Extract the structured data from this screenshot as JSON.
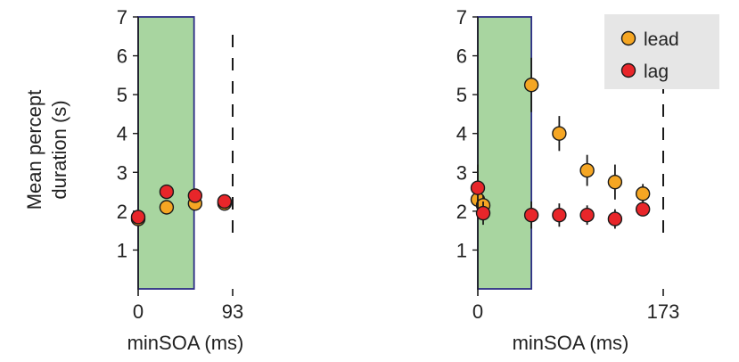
{
  "ylabel": [
    "Mean percept",
    "duration (s)"
  ],
  "legend": {
    "placement": "top-right",
    "items": [
      {
        "label": "lead",
        "color": "#f5a623"
      },
      {
        "label": "lag",
        "color": "#e8262a"
      }
    ]
  },
  "colors": {
    "lead": "#f5a623",
    "lag": "#e8262a",
    "shade_fill": "#a8d5a0",
    "shade_border": "#2d2f86",
    "legend_bg": "#e6e6e6",
    "axis": "#1a1a1a"
  },
  "chart_data": [
    {
      "type": "scatter",
      "xlabel": "minSOA (ms)",
      "ylim": [
        0,
        7
      ],
      "xlim": [
        0,
        93
      ],
      "yticks": [
        "1",
        "2",
        "3",
        "4",
        "5",
        "6",
        "7"
      ],
      "xticks": [
        "0",
        "93"
      ],
      "shaded_x": [
        0,
        55
      ],
      "dashed_x": 93,
      "grid": false,
      "series": [
        {
          "name": "lead",
          "x": [
            0,
            28,
            56,
            85
          ],
          "y": [
            1.8,
            2.1,
            2.2,
            2.2
          ],
          "err": [
            0.05,
            0.05,
            0.05,
            0.05
          ]
        },
        {
          "name": "lag",
          "x": [
            0,
            28,
            56,
            85
          ],
          "y": [
            1.85,
            2.5,
            2.4,
            2.25
          ],
          "err": [
            0.05,
            0.05,
            0.05,
            0.05
          ]
        }
      ]
    },
    {
      "type": "scatter",
      "xlabel": "minSOA (ms)",
      "ylim": [
        0,
        7
      ],
      "xlim": [
        0,
        173
      ],
      "yticks": [
        "1",
        "2",
        "3",
        "4",
        "5",
        "6",
        "7"
      ],
      "xticks": [
        "0",
        "173"
      ],
      "shaded_x": [
        0,
        50
      ],
      "dashed_x": 173,
      "grid": false,
      "series": [
        {
          "name": "lead",
          "x": [
            0,
            5,
            50,
            76,
            102,
            128,
            154
          ],
          "y": [
            2.3,
            2.15,
            5.25,
            4.0,
            3.05,
            2.75,
            2.45
          ],
          "err": [
            0.3,
            0.25,
            0.7,
            0.45,
            0.4,
            0.45,
            0.25
          ]
        },
        {
          "name": "lag",
          "x": [
            0,
            5,
            50,
            76,
            102,
            128,
            154
          ],
          "y": [
            2.6,
            1.95,
            1.9,
            1.9,
            1.9,
            1.8,
            2.05
          ],
          "err": [
            0.6,
            0.3,
            0.35,
            0.3,
            0.25,
            0.25,
            0.15
          ]
        }
      ]
    }
  ]
}
